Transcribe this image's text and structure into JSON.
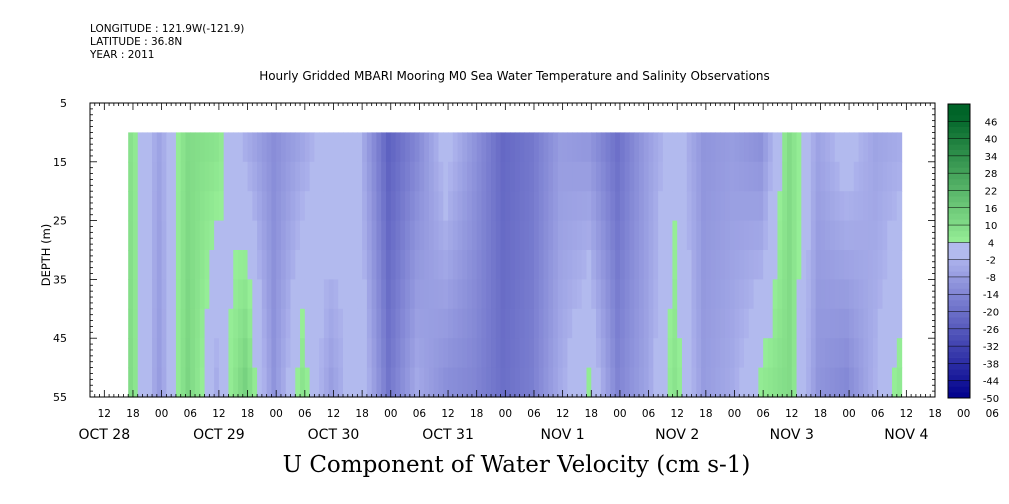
{
  "header": {
    "longitude": "LONGITUDE : 121.9W(-121.9)",
    "latitude": "LATITUDE : 36.8N",
    "year": "YEAR : 2011"
  },
  "chart_data": {
    "type": "heatmap",
    "title": "Hourly Gridded MBARI Mooring M0 Sea Water Temperature and Salinity Observations",
    "bottom_title": "U Component of Water Velocity (cm s-1)",
    "ylabel": "DEPTH (m)",
    "ylim": [
      5,
      55
    ],
    "y_inverted": true,
    "yticks": [
      5,
      15,
      25,
      35,
      45,
      55
    ],
    "data_depth_range": [
      10,
      55
    ],
    "time_range_hours": [
      "OCT 28 09",
      "NOV 4 18"
    ],
    "data_time_range_hours": [
      "OCT 28 17",
      "NOV 4 17"
    ],
    "hour_ticks": [
      "12",
      "18",
      "00",
      "06",
      "12",
      "18",
      "00",
      "06",
      "12",
      "18",
      "00",
      "06",
      "12",
      "18",
      "00",
      "06",
      "12",
      "18",
      "00",
      "06",
      "12",
      "18",
      "00",
      "06",
      "12",
      "18",
      "00",
      "06",
      "12",
      "18",
      "00",
      "06"
    ],
    "day_labels": [
      "OCT 28",
      "OCT 29",
      "OCT 30",
      "OCT 31",
      "NOV 1",
      "NOV 2",
      "NOV 3",
      "NOV 4"
    ],
    "colorbar": {
      "labels": [
        "46",
        "40",
        "34",
        "28",
        "22",
        "16",
        "10",
        "4",
        "-2",
        "-8",
        "-14",
        "-20",
        "-26",
        "-32",
        "-38",
        "-44",
        "-50"
      ],
      "range": [
        -50,
        52
      ]
    },
    "column_profile_cm_s": [
      {
        "day": "OCT 28 18",
        "top": 8,
        "bottom": 10
      },
      {
        "day": "OCT 29 00",
        "top": -6,
        "bottom": -8
      },
      {
        "day": "OCT 29 06",
        "top": 10,
        "bottom": 12
      },
      {
        "day": "OCT 29 12",
        "top": 8,
        "bottom": -4
      },
      {
        "day": "OCT 29 18",
        "top": -4,
        "bottom": 14
      },
      {
        "day": "OCT 30 00",
        "top": -12,
        "bottom": -10
      },
      {
        "day": "OCT 30 06",
        "top": -6,
        "bottom": 8
      },
      {
        "day": "OCT 30 12",
        "top": 4,
        "bottom": -8
      },
      {
        "day": "OCT 30 18",
        "top": -2,
        "bottom": 4
      },
      {
        "day": "OCT 31 00",
        "top": -24,
        "bottom": -18
      },
      {
        "day": "OCT 31 06",
        "top": -14,
        "bottom": -4
      },
      {
        "day": "OCT 31 12",
        "top": 2,
        "bottom": -12
      },
      {
        "day": "OCT 31 18",
        "top": -10,
        "bottom": -14
      },
      {
        "day": "NOV 1 00",
        "top": -22,
        "bottom": -20
      },
      {
        "day": "NOV 1 06",
        "top": -18,
        "bottom": -16
      },
      {
        "day": "NOV 1 12",
        "top": -8,
        "bottom": -4
      },
      {
        "day": "NOV 1 18",
        "top": -10,
        "bottom": 6
      },
      {
        "day": "NOV 2 00",
        "top": -20,
        "bottom": -14
      },
      {
        "day": "NOV 2 06",
        "top": -8,
        "bottom": -6
      },
      {
        "day": "NOV 2 12",
        "top": 2,
        "bottom": 8
      },
      {
        "day": "NOV 2 18",
        "top": -10,
        "bottom": -8
      },
      {
        "day": "NOV 3 00",
        "top": -8,
        "bottom": -4
      },
      {
        "day": "NOV 3 06",
        "top": -12,
        "bottom": 6
      },
      {
        "day": "NOV 3 12",
        "top": 10,
        "bottom": 10
      },
      {
        "day": "NOV 3 18",
        "top": -6,
        "bottom": -10
      },
      {
        "day": "NOV 4 00",
        "top": 2,
        "bottom": -14
      },
      {
        "day": "NOV 4 06",
        "top": -6,
        "bottom": -2
      },
      {
        "day": "NOV 4 12",
        "top": -4,
        "bottom": 8
      }
    ]
  }
}
